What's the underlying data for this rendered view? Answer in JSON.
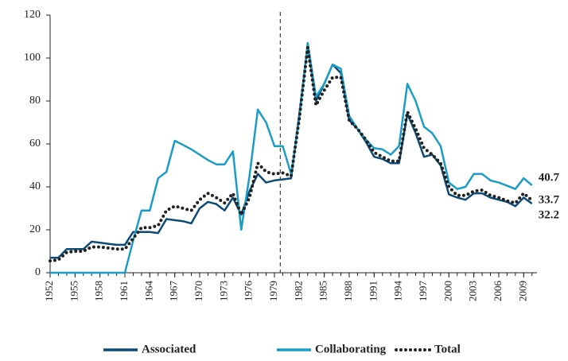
{
  "chart_data": {
    "type": "line",
    "x": [
      1952,
      1953,
      1954,
      1955,
      1956,
      1957,
      1958,
      1959,
      1960,
      1961,
      1962,
      1963,
      1964,
      1965,
      1966,
      1967,
      1968,
      1969,
      1970,
      1971,
      1972,
      1973,
      1974,
      1975,
      1976,
      1977,
      1978,
      1979,
      1980,
      1981,
      1982,
      1983,
      1984,
      1985,
      1986,
      1987,
      1988,
      1989,
      1990,
      1991,
      1992,
      1993,
      1994,
      1995,
      1996,
      1997,
      1998,
      1999,
      2000,
      2001,
      2002,
      2003,
      2004,
      2005,
      2006,
      2007,
      2008,
      2009,
      2010
    ],
    "series": [
      {
        "name": "Associated",
        "color": "#0d4a75",
        "style": "solid",
        "values": [
          7,
          7,
          11,
          11,
          11,
          14.5,
          14,
          13.5,
          13,
          13,
          19,
          19,
          19,
          18.5,
          25,
          24.5,
          24,
          23,
          30,
          33,
          32,
          29,
          35,
          27,
          38,
          46,
          42,
          43,
          43.5,
          44,
          74,
          106,
          80,
          88,
          97,
          93,
          71,
          67,
          61,
          54,
          53,
          51,
          51,
          74,
          65,
          54,
          55,
          50,
          36.5,
          35,
          34,
          37,
          37,
          35,
          34,
          33,
          31,
          35,
          32.2
        ],
        "end_label": "32.2"
      },
      {
        "name": "Collaborating",
        "color": "#1a9cc7",
        "style": "solid",
        "values": [
          0,
          0,
          0,
          0,
          0,
          0,
          0,
          0,
          0,
          0,
          15,
          29,
          29,
          44,
          47,
          61.5,
          59.5,
          57.5,
          55,
          52.5,
          50.5,
          50.5,
          56.5,
          20,
          45,
          76,
          70,
          59,
          59,
          46,
          72,
          107,
          82,
          88,
          97,
          95,
          73,
          67,
          62,
          58,
          57.5,
          55,
          59,
          88,
          80,
          68,
          65,
          59,
          42,
          39,
          40,
          46,
          46,
          43,
          42,
          40.5,
          39,
          44,
          40.7
        ],
        "end_label": "40.7"
      },
      {
        "name": "Total",
        "color": "#222222",
        "style": "dotted",
        "values": [
          5.5,
          6,
          9.5,
          10,
          10,
          12,
          12,
          11.5,
          11,
          11,
          16,
          21,
          21,
          22,
          29,
          31,
          30,
          29,
          34,
          37,
          35,
          32.5,
          37,
          27,
          35,
          51,
          47,
          46,
          46.5,
          45,
          72,
          105,
          78,
          85,
          91,
          91,
          71,
          67,
          62,
          56,
          54,
          52,
          52,
          75,
          67,
          58,
          55,
          51,
          40,
          36,
          36,
          38,
          38.5,
          36,
          35,
          33.5,
          32.5,
          37,
          33.7
        ],
        "end_label": "33.7"
      }
    ],
    "xlim": [
      1952,
      2010.6
    ],
    "xticks": [
      1952,
      1955,
      1958,
      1961,
      1964,
      1967,
      1970,
      1973,
      1976,
      1979,
      1982,
      1985,
      1988,
      1991,
      1994,
      1997,
      2000,
      2003,
      2006,
      2009
    ],
    "ylim": [
      0,
      120
    ],
    "yticks": [
      0,
      20,
      40,
      60,
      80,
      100,
      120
    ],
    "reference_line": 1979.7,
    "legend": "bottom"
  }
}
